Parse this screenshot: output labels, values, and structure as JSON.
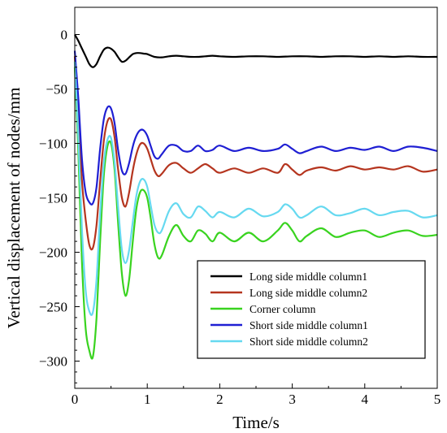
{
  "chart_data": {
    "type": "line",
    "xlabel": "Time/s",
    "ylabel": "Vertical displacement of nodes/mm",
    "xlim": [
      0,
      5
    ],
    "ylim": [
      -325,
      25
    ],
    "xticks": [
      0,
      1,
      2,
      3,
      4,
      5
    ],
    "yticks": [
      0,
      -50,
      -100,
      -150,
      -200,
      -250,
      -300
    ],
    "grid": false,
    "legend_position": "bottom-right",
    "series": [
      {
        "name": "Long side middle column1",
        "color": "#000000",
        "x": [
          0,
          0.05,
          0.1,
          0.15,
          0.2,
          0.25,
          0.3,
          0.35,
          0.4,
          0.45,
          0.5,
          0.55,
          0.6,
          0.65,
          0.7,
          0.75,
          0.8,
          0.85,
          0.9,
          0.95,
          1.0,
          1.1,
          1.2,
          1.3,
          1.4,
          1.5,
          1.6,
          1.7,
          1.8,
          1.9,
          2.0,
          2.2,
          2.4,
          2.6,
          2.8,
          3.0,
          3.2,
          3.4,
          3.6,
          3.8,
          4.0,
          4.2,
          4.4,
          4.6,
          4.8,
          5.0
        ],
        "y": [
          0,
          -6,
          -13,
          -20,
          -27,
          -30,
          -27,
          -20,
          -14,
          -12,
          -13,
          -16,
          -21,
          -25,
          -24,
          -21,
          -18,
          -17,
          -17,
          -17.5,
          -18,
          -20.5,
          -21,
          -20,
          -19.5,
          -20,
          -20.5,
          -20.5,
          -20,
          -19.5,
          -20,
          -20.5,
          -20,
          -20,
          -20.5,
          -20,
          -20,
          -20.5,
          -20,
          -20,
          -20.5,
          -20,
          -20.5,
          -20,
          -20.5,
          -20.5
        ]
      },
      {
        "name": "Long side middle column2",
        "color": "#b5351f",
        "x": [
          0,
          0.05,
          0.1,
          0.15,
          0.2,
          0.25,
          0.3,
          0.35,
          0.4,
          0.45,
          0.5,
          0.55,
          0.6,
          0.65,
          0.7,
          0.75,
          0.8,
          0.85,
          0.9,
          0.95,
          1.0,
          1.05,
          1.1,
          1.15,
          1.2,
          1.3,
          1.4,
          1.5,
          1.6,
          1.7,
          1.8,
          1.9,
          2.0,
          2.2,
          2.4,
          2.6,
          2.8,
          2.9,
          3.0,
          3.1,
          3.2,
          3.4,
          3.6,
          3.8,
          4.0,
          4.2,
          4.4,
          4.6,
          4.8,
          5.0
        ],
        "y": [
          -20,
          -75,
          -135,
          -170,
          -193,
          -196,
          -175,
          -135,
          -98,
          -80,
          -78,
          -95,
          -125,
          -150,
          -158,
          -145,
          -125,
          -110,
          -101,
          -100,
          -105,
          -115,
          -125,
          -130,
          -128,
          -120,
          -118,
          -123,
          -127,
          -123,
          -119,
          -123,
          -127,
          -123,
          -127,
          -123,
          -127,
          -119,
          -124,
          -129,
          -125,
          -122,
          -125,
          -121,
          -124,
          -122,
          -124,
          -121,
          -126,
          -124
        ]
      },
      {
        "name": "Corner column",
        "color": "#39d31f",
        "x": [
          0,
          0.05,
          0.1,
          0.15,
          0.2,
          0.25,
          0.3,
          0.35,
          0.4,
          0.45,
          0.5,
          0.55,
          0.6,
          0.65,
          0.7,
          0.75,
          0.8,
          0.85,
          0.9,
          0.95,
          1.0,
          1.05,
          1.1,
          1.15,
          1.2,
          1.3,
          1.4,
          1.5,
          1.6,
          1.7,
          1.8,
          1.9,
          2.0,
          2.2,
          2.4,
          2.6,
          2.8,
          2.9,
          3.0,
          3.1,
          3.2,
          3.4,
          3.6,
          3.8,
          4.0,
          4.2,
          4.4,
          4.6,
          4.8,
          5.0
        ],
        "y": [
          -30,
          -110,
          -210,
          -270,
          -290,
          -296,
          -260,
          -190,
          -130,
          -103,
          -100,
          -125,
          -175,
          -220,
          -240,
          -225,
          -190,
          -160,
          -145,
          -143,
          -150,
          -170,
          -193,
          -205,
          -203,
          -185,
          -175,
          -185,
          -190,
          -180,
          -183,
          -190,
          -182,
          -190,
          -182,
          -190,
          -180,
          -173,
          -180,
          -190,
          -185,
          -178,
          -186,
          -182,
          -180,
          -186,
          -182,
          -180,
          -185,
          -184
        ]
      },
      {
        "name": "Short side middle column1",
        "color": "#1f1fd3",
        "x": [
          0,
          0.05,
          0.1,
          0.15,
          0.2,
          0.25,
          0.3,
          0.35,
          0.4,
          0.45,
          0.5,
          0.55,
          0.6,
          0.65,
          0.7,
          0.75,
          0.8,
          0.85,
          0.9,
          0.95,
          1.0,
          1.05,
          1.1,
          1.15,
          1.2,
          1.3,
          1.4,
          1.5,
          1.6,
          1.7,
          1.8,
          1.9,
          2.0,
          2.2,
          2.4,
          2.6,
          2.8,
          2.9,
          3.0,
          3.1,
          3.2,
          3.4,
          3.6,
          3.8,
          4.0,
          4.2,
          4.4,
          4.6,
          4.8,
          5.0
        ],
        "y": [
          -15,
          -60,
          -115,
          -145,
          -154,
          -155,
          -140,
          -105,
          -78,
          -67,
          -68,
          -82,
          -107,
          -125,
          -128,
          -118,
          -103,
          -93,
          -88,
          -88,
          -93,
          -103,
          -112,
          -114,
          -110,
          -102,
          -102,
          -107,
          -107,
          -102,
          -107,
          -106,
          -102,
          -107,
          -104,
          -107,
          -105,
          -101,
          -105,
          -109,
          -107,
          -103,
          -107,
          -104,
          -106,
          -103,
          -107,
          -103,
          -104,
          -107
        ]
      },
      {
        "name": "Short side middle column2",
        "color": "#66d9f0",
        "x": [
          0,
          0.05,
          0.1,
          0.15,
          0.2,
          0.25,
          0.3,
          0.35,
          0.4,
          0.45,
          0.5,
          0.55,
          0.6,
          0.65,
          0.7,
          0.75,
          0.8,
          0.85,
          0.9,
          0.95,
          1.0,
          1.05,
          1.1,
          1.15,
          1.2,
          1.3,
          1.4,
          1.5,
          1.6,
          1.7,
          1.8,
          1.9,
          2.0,
          2.2,
          2.4,
          2.6,
          2.8,
          2.9,
          3.0,
          3.1,
          3.2,
          3.4,
          3.6,
          3.8,
          4.0,
          4.2,
          4.4,
          4.6,
          4.8,
          5.0
        ],
        "y": [
          -25,
          -95,
          -180,
          -235,
          -254,
          -255,
          -225,
          -165,
          -118,
          -97,
          -95,
          -118,
          -160,
          -198,
          -210,
          -198,
          -172,
          -148,
          -135,
          -133,
          -140,
          -158,
          -175,
          -182,
          -180,
          -162,
          -155,
          -165,
          -168,
          -158,
          -162,
          -168,
          -163,
          -168,
          -160,
          -167,
          -163,
          -156,
          -160,
          -168,
          -166,
          -158,
          -166,
          -164,
          -160,
          -166,
          -163,
          -162,
          -168,
          -166
        ]
      }
    ]
  }
}
